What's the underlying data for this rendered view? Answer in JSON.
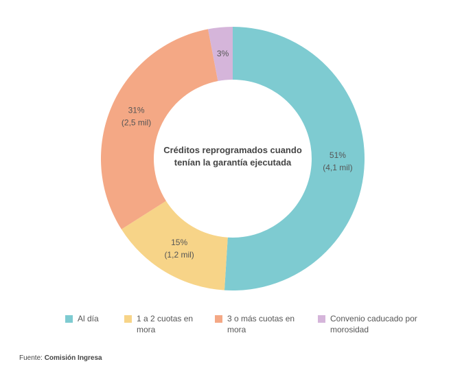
{
  "chart_data": {
    "type": "donut",
    "title": "Créditos reprogramados cuando tenían la garantía ejecutada",
    "categories": [
      "Al día",
      "1 a 2 cuotas en mora",
      "3 o más cuotas en mora",
      "Convenio caducado por morosidad"
    ],
    "values": [
      51,
      15,
      31,
      3
    ],
    "value_labels": [
      "51%",
      "15%",
      "31%",
      "3%"
    ],
    "count_labels": [
      "(4,1 mil)",
      "(1,2 mil)",
      "(2,5 mil)",
      null
    ],
    "colors": [
      "#7ecbd1",
      "#f7d488",
      "#f4a885",
      "#d5b5da"
    ],
    "legend": "bottom"
  },
  "source_label": "Fuente:",
  "source": "Comisión Ingresa"
}
